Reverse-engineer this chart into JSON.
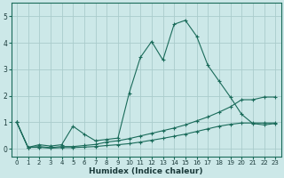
{
  "xlabel": "Humidex (Indice chaleur)",
  "bg_color": "#cce8e8",
  "grid_color": "#aacccc",
  "line_color": "#1a6b5a",
  "xlim": [
    -0.5,
    23.5
  ],
  "ylim": [
    -0.3,
    5.5
  ],
  "yticks": [
    0,
    1,
    2,
    3,
    4,
    5
  ],
  "xticks": [
    0,
    1,
    2,
    3,
    4,
    5,
    6,
    7,
    8,
    9,
    10,
    11,
    12,
    13,
    14,
    15,
    16,
    17,
    18,
    19,
    20,
    21,
    22,
    23
  ],
  "series1_x": [
    0,
    1,
    2,
    3,
    4,
    5,
    6,
    7,
    8,
    9,
    10,
    11,
    12,
    13,
    14,
    15,
    16,
    17,
    18,
    19,
    20,
    21,
    22,
    23
  ],
  "series1_y": [
    1.0,
    0.05,
    0.15,
    0.1,
    0.15,
    0.85,
    0.55,
    0.3,
    0.35,
    0.4,
    2.1,
    3.45,
    4.05,
    3.35,
    4.7,
    4.85,
    4.25,
    3.15,
    2.55,
    1.95,
    1.3,
    0.95,
    0.9,
    0.95
  ],
  "series2_x": [
    0,
    1,
    2,
    3,
    4,
    5,
    6,
    7,
    8,
    9,
    10,
    11,
    12,
    13,
    14,
    15,
    16,
    17,
    18,
    19,
    20,
    21,
    22,
    23
  ],
  "series2_y": [
    1.0,
    0.05,
    0.08,
    0.04,
    0.08,
    0.08,
    0.12,
    0.16,
    0.25,
    0.3,
    0.38,
    0.48,
    0.58,
    0.68,
    0.78,
    0.9,
    1.05,
    1.2,
    1.38,
    1.58,
    1.85,
    1.85,
    1.95,
    1.95
  ],
  "series3_x": [
    0,
    1,
    2,
    3,
    4,
    5,
    6,
    7,
    8,
    9,
    10,
    11,
    12,
    13,
    14,
    15,
    16,
    17,
    18,
    19,
    20,
    21,
    22,
    23
  ],
  "series3_y": [
    1.0,
    0.05,
    0.05,
    0.02,
    0.04,
    0.04,
    0.06,
    0.08,
    0.12,
    0.15,
    0.19,
    0.25,
    0.32,
    0.39,
    0.47,
    0.55,
    0.65,
    0.75,
    0.85,
    0.92,
    0.97,
    0.97,
    0.97,
    0.97
  ],
  "tick_fontsize": 5.0,
  "xlabel_fontsize": 6.5,
  "marker_size": 3.5,
  "line_width": 0.8
}
